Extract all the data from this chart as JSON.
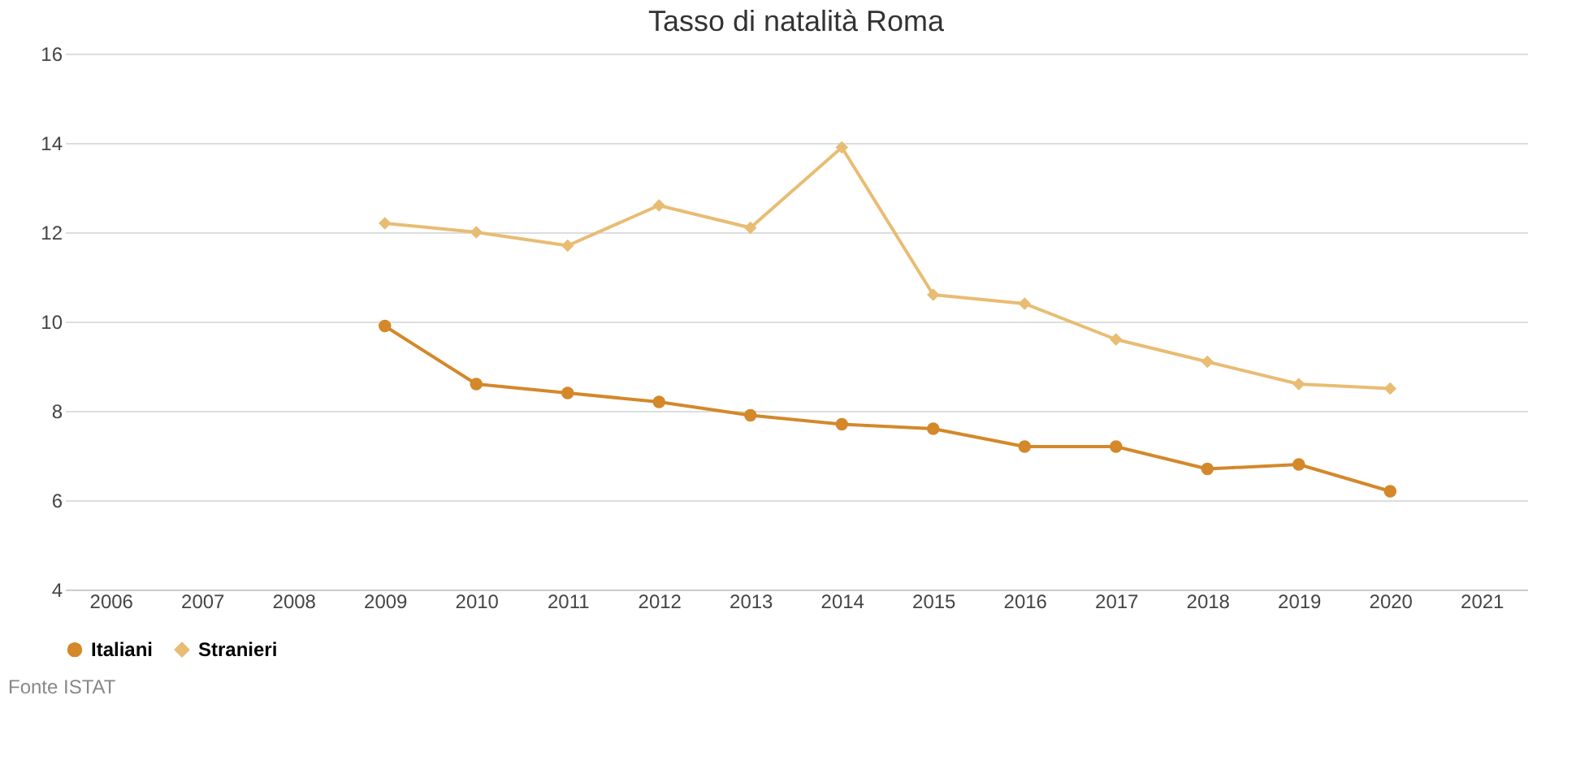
{
  "chart_data": {
    "type": "line",
    "title": "Tasso di natalità Roma",
    "categories": [
      "2006",
      "2007",
      "2008",
      "2009",
      "2010",
      "2011",
      "2012",
      "2013",
      "2014",
      "2015",
      "2016",
      "2017",
      "2018",
      "2019",
      "2020",
      "2021"
    ],
    "series": [
      {
        "name": "Italiani",
        "color": "#d4882a",
        "marker": "circle",
        "values": [
          null,
          null,
          null,
          9.9,
          8.6,
          8.4,
          8.2,
          7.9,
          7.7,
          7.6,
          7.2,
          7.2,
          6.7,
          6.8,
          6.2,
          null
        ]
      },
      {
        "name": "Stranieri",
        "color": "#e8bc72",
        "marker": "diamond",
        "values": [
          null,
          null,
          null,
          12.2,
          12.0,
          11.7,
          12.6,
          12.1,
          13.9,
          10.6,
          10.4,
          9.6,
          9.1,
          8.6,
          8.5,
          null
        ]
      }
    ],
    "ylim": [
      4,
      16
    ],
    "yticks": [
      4,
      6,
      8,
      10,
      12,
      14,
      16
    ],
    "grid": "y",
    "legend": "bottom",
    "line_style": "solid",
    "annotations": [
      "Fonte ISTAT"
    ]
  }
}
